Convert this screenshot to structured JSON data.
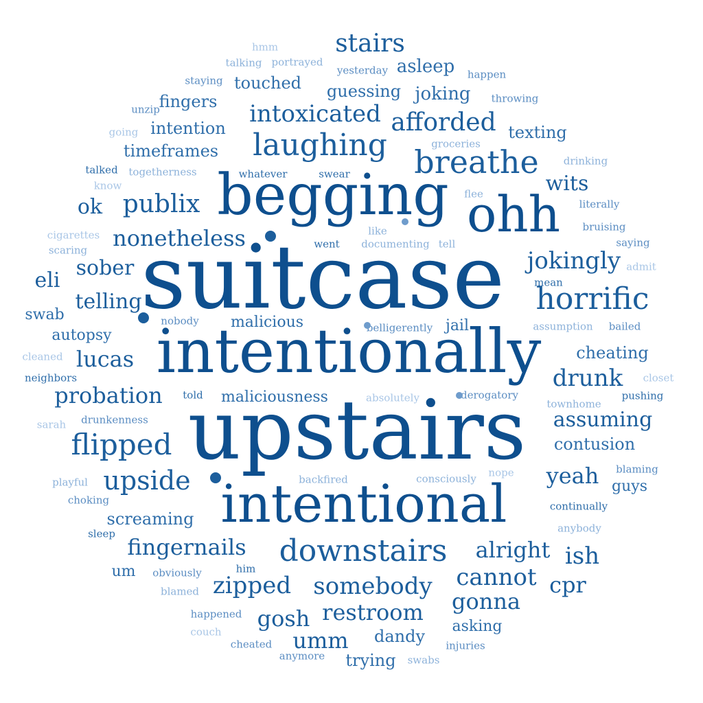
{
  "words": {
    "suitcase": "suitcase",
    "upstairs": "upstairs",
    "intentionally": "intentionally",
    "begging": "begging",
    "intentional": "intentional",
    "ohh": "ohh",
    "breathe": "breathe",
    "laughing": "laughing",
    "horrific": "horrific",
    "downstairs": "downstairs",
    "flipped": "flipped",
    "upside": "upside",
    "intoxicated": "intoxicated",
    "afforded": "afforded",
    "publix": "publix",
    "nonetheless": "nonetheless",
    "probation": "probation",
    "stairs": "stairs",
    "jokingly": "jokingly",
    "drunk": "drunk",
    "somebody": "somebody",
    "zipped": "zipped",
    "restroom": "restroom",
    "cannot": "cannot",
    "fingernails": "fingernails",
    "alright": "alright",
    "yeah": "yeah",
    "assuming": "assuming",
    "cpr": "cpr",
    "ish": "ish",
    "gonna": "gonna",
    "gosh": "gosh",
    "umm": "umm",
    "telling": "telling",
    "sober": "sober",
    "lucas": "lucas",
    "eli": "eli",
    "ok": "ok",
    "wits": "wits",
    "timeframes": "timeframes",
    "fingers": "fingers",
    "touched": "touched",
    "intention": "intention",
    "asleep": "asleep",
    "joking": "joking",
    "guessing": "guessing",
    "texting": "texting",
    "screaming": "screaming",
    "maliciousness": "maliciousness",
    "malicious": "malicious",
    "cheating": "cheating",
    "contusion": "contusion",
    "autopsy": "autopsy",
    "swab": "swab",
    "jail": "jail",
    "dandy": "dandy",
    "trying": "trying",
    "asking": "asking",
    "guys": "guys",
    "um": "um",
    "hmm": "hmm",
    "talking": "talking",
    "portrayed": "portrayed",
    "staying": "staying",
    "yesterday": "yesterday",
    "happen": "happen",
    "throwing": "throwing",
    "unzip": "unzip",
    "going": "going",
    "groceries": "groceries",
    "talked": "talked",
    "togetherness": "togetherness",
    "whatever": "whatever",
    "swear": "swear",
    "drinking": "drinking",
    "know": "know",
    "flee": "flee",
    "literally": "literally",
    "cigarettes": "cigarettes",
    "like": "like",
    "bruising": "bruising",
    "scaring": "scaring",
    "went": "went",
    "documenting": "documenting",
    "tell": "tell",
    "saying": "saying",
    "admit": "admit",
    "mean": "mean",
    "nobody": "nobody",
    "belligerently": "belligerently",
    "assumption": "assumption",
    "bailed": "bailed",
    "cleaned": "cleaned",
    "neighbors": "neighbors",
    "told": "told",
    "absolutely": "absolutely",
    "derogatory": "derogatory",
    "closet": "closet",
    "pushing": "pushing",
    "townhome": "townhome",
    "sarah": "sarah",
    "drunkenness": "drunkenness",
    "playful": "playful",
    "backfired": "backfired",
    "consciously": "consciously",
    "nope": "nope",
    "blaming": "blaming",
    "choking": "choking",
    "continually": "continually",
    "sleep": "sleep",
    "anybody": "anybody",
    "obviously": "obviously",
    "him": "him",
    "blamed": "blamed",
    "happened": "happened",
    "couch": "couch",
    "cheated": "cheated",
    "anymore": "anymore",
    "swabs": "swabs",
    "injuries": "injuries"
  },
  "colors": {
    "darkest": "#0e4f8e",
    "dark": "#1c5e9c",
    "mid": "#2f6eaa",
    "medium": "#5b8dc2",
    "light": "#8db2da",
    "lightest": "#a9c6e6"
  }
}
